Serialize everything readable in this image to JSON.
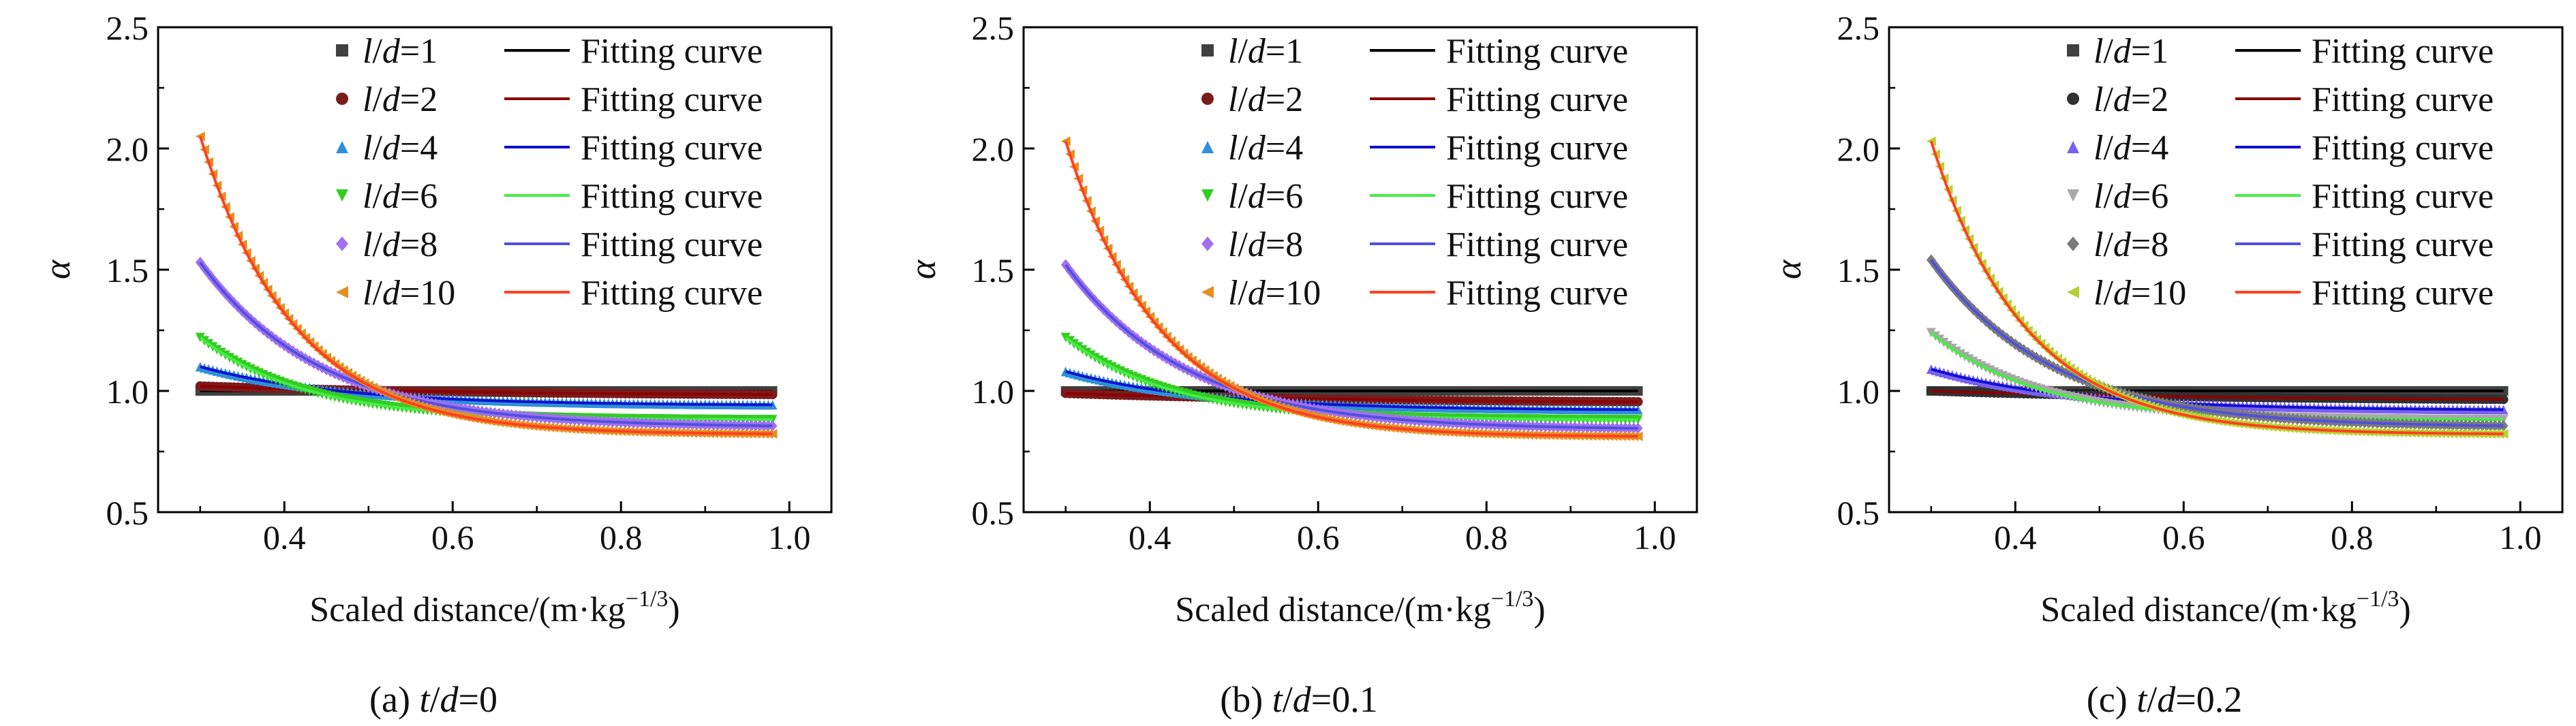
{
  "chart_data": [
    {
      "type": "scatter",
      "xlabel": "Scaled distance/(m·kg",
      "xlabel_sup": "−1/3",
      "xlabel_tail": ")",
      "ylabel": "α",
      "xlim": [
        0.25,
        1.05
      ],
      "ylim": [
        0.5,
        2.5
      ],
      "xticks": [
        "0.4",
        "0.6",
        "0.8",
        "1.0"
      ],
      "yticks": [
        "0.5",
        "1.0",
        "1.5",
        "2.0",
        "2.5"
      ],
      "legend_position": "top-right",
      "caption": {
        "prefix": "(a) ",
        "var": "t",
        "slash": "/",
        "var2": "d",
        "value": "=0"
      },
      "series": [
        {
          "name_var": "l",
          "name_var2": "d",
          "name_value": "=1",
          "fit_name": "Fitting curve",
          "marker": "square",
          "marker_color": "#404040",
          "line_color": "#000000",
          "y_start": 1.0,
          "y_end": 1.0,
          "k": 3
        },
        {
          "name_var": "l",
          "name_var2": "d",
          "name_value": "=2",
          "fit_name": "Fitting curve",
          "marker": "circle",
          "marker_color": "#7a1c1c",
          "line_color": "#8b0000",
          "y_start": 1.02,
          "y_end": 0.98,
          "k": 3
        },
        {
          "name_var": "l",
          "name_var2": "d",
          "name_value": "=4",
          "fit_name": "Fitting curve",
          "marker": "triangle-up",
          "marker_color": "#2f8fd8",
          "line_color": "#1010d0",
          "y_start": 1.1,
          "y_end": 0.94,
          "k": 6
        },
        {
          "name_var": "l",
          "name_var2": "d",
          "name_value": "=6",
          "fit_name": "Fitting curve",
          "marker": "triangle-down",
          "marker_color": "#33cc22",
          "line_color": "#44ee44",
          "y_start": 1.22,
          "y_end": 0.88,
          "k": 8
        },
        {
          "name_var": "l",
          "name_var2": "d",
          "name_value": "=8",
          "fit_name": "Fitting curve",
          "marker": "diamond",
          "marker_color": "#a070f0",
          "line_color": "#5050e0",
          "y_start": 1.53,
          "y_end": 0.85,
          "k": 7
        },
        {
          "name_var": "l",
          "name_var2": "d",
          "name_value": "=10",
          "fit_name": "Fitting curve",
          "marker": "triangle-left",
          "marker_color": "#e39020",
          "line_color": "#ff4020",
          "y_start": 2.05,
          "y_end": 0.82,
          "k": 9
        }
      ]
    },
    {
      "type": "scatter",
      "xlabel": "Scaled distance/(m·kg",
      "xlabel_sup": "−1/3",
      "xlabel_tail": ")",
      "ylabel": "α",
      "xlim": [
        0.25,
        1.05
      ],
      "ylim": [
        0.5,
        2.5
      ],
      "xticks": [
        "0.4",
        "0.6",
        "0.8",
        "1.0"
      ],
      "yticks": [
        "0.5",
        "1.0",
        "1.5",
        "2.0",
        "2.5"
      ],
      "legend_position": "top-right",
      "caption": {
        "prefix": "(b) ",
        "var": "t",
        "slash": "/",
        "var2": "d",
        "value": "=0.1"
      },
      "series": [
        {
          "name_var": "l",
          "name_var2": "d",
          "name_value": "=1",
          "fit_name": "Fitting curve",
          "marker": "square",
          "marker_color": "#404040",
          "line_color": "#000000",
          "y_start": 1.0,
          "y_end": 1.0,
          "k": 3
        },
        {
          "name_var": "l",
          "name_var2": "d",
          "name_value": "=2",
          "fit_name": "Fitting curve",
          "marker": "circle",
          "marker_color": "#7a1c1c",
          "line_color": "#8b0000",
          "y_start": 0.99,
          "y_end": 0.95,
          "k": 3
        },
        {
          "name_var": "l",
          "name_var2": "d",
          "name_value": "=4",
          "fit_name": "Fitting curve",
          "marker": "triangle-up",
          "marker_color": "#2f8fd8",
          "line_color": "#1010d0",
          "y_start": 1.08,
          "y_end": 0.92,
          "k": 6
        },
        {
          "name_var": "l",
          "name_var2": "d",
          "name_value": "=6",
          "fit_name": "Fitting curve",
          "marker": "triangle-down",
          "marker_color": "#33cc22",
          "line_color": "#44ee44",
          "y_start": 1.22,
          "y_end": 0.88,
          "k": 8
        },
        {
          "name_var": "l",
          "name_var2": "d",
          "name_value": "=8",
          "fit_name": "Fitting curve",
          "marker": "diamond",
          "marker_color": "#a070f0",
          "line_color": "#5050e0",
          "y_start": 1.52,
          "y_end": 0.84,
          "k": 7
        },
        {
          "name_var": "l",
          "name_var2": "d",
          "name_value": "=10",
          "fit_name": "Fitting curve",
          "marker": "triangle-left",
          "marker_color": "#e39020",
          "line_color": "#ff4020",
          "y_start": 2.03,
          "y_end": 0.81,
          "k": 9
        }
      ]
    },
    {
      "type": "scatter",
      "xlabel": "Scaled distance/(m·kg",
      "xlabel_sup": "−1/3",
      "xlabel_tail": ")",
      "ylabel": "α",
      "xlim": [
        0.25,
        1.05
      ],
      "ylim": [
        0.5,
        2.5
      ],
      "xticks": [
        "0.4",
        "0.6",
        "0.8",
        "1.0"
      ],
      "yticks": [
        "0.5",
        "1.0",
        "1.5",
        "2.0",
        "2.5"
      ],
      "legend_position": "top-right",
      "caption": {
        "prefix": "(c) ",
        "var": "t",
        "slash": "/",
        "var2": "d",
        "value": "=0.2"
      },
      "series": [
        {
          "name_var": "l",
          "name_var2": "d",
          "name_value": "=1",
          "fit_name": "Fitting curve",
          "marker": "square",
          "marker_color": "#404040",
          "line_color": "#000000",
          "y_start": 1.0,
          "y_end": 1.0,
          "k": 3
        },
        {
          "name_var": "l",
          "name_var2": "d",
          "name_value": "=2",
          "fit_name": "Fitting curve",
          "marker": "circle",
          "marker_color": "#303030",
          "line_color": "#8b0000",
          "y_start": 1.0,
          "y_end": 0.96,
          "k": 3
        },
        {
          "name_var": "l",
          "name_var2": "d",
          "name_value": "=4",
          "fit_name": "Fitting curve",
          "marker": "triangle-up",
          "marker_color": "#7a60f0",
          "line_color": "#1010d0",
          "y_start": 1.09,
          "y_end": 0.92,
          "k": 6
        },
        {
          "name_var": "l",
          "name_var2": "d",
          "name_value": "=6",
          "fit_name": "Fitting curve",
          "marker": "triangle-down",
          "marker_color": "#a8a8a8",
          "line_color": "#44ee44",
          "y_start": 1.24,
          "y_end": 0.88,
          "k": 8
        },
        {
          "name_var": "l",
          "name_var2": "d",
          "name_value": "=8",
          "fit_name": "Fitting curve",
          "marker": "diamond",
          "marker_color": "#7a7a7a",
          "line_color": "#5050e0",
          "y_start": 1.54,
          "y_end": 0.85,
          "k": 7
        },
        {
          "name_var": "l",
          "name_var2": "d",
          "name_value": "=10",
          "fit_name": "Fitting curve",
          "marker": "triangle-left",
          "marker_color": "#b8d030",
          "line_color": "#ff4020",
          "y_start": 2.03,
          "y_end": 0.82,
          "k": 9
        }
      ]
    }
  ]
}
